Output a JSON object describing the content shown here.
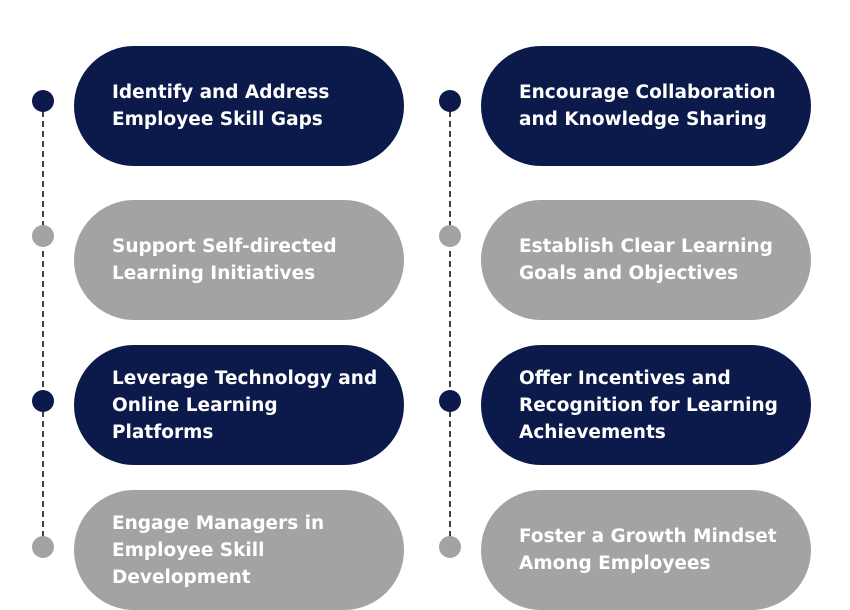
{
  "colors": {
    "primary": "#0b1a4a",
    "secondary": "#a3a3a3",
    "connector": "#3f3f4a"
  },
  "left_column": [
    {
      "label": "Identify and Address Employee Skill Gaps",
      "style": "primary"
    },
    {
      "label": "Support Self-directed Learning Initiatives",
      "style": "secondary"
    },
    {
      "label": "Leverage Technology and Online Learning Platforms",
      "style": "primary"
    },
    {
      "label": "Engage Managers in Employee Skill Development",
      "style": "secondary"
    }
  ],
  "right_column": [
    {
      "label": "Encourage Collaboration and Knowledge Sharing",
      "style": "primary"
    },
    {
      "label": "Establish Clear Learning Goals and Objectives",
      "style": "secondary"
    },
    {
      "label": "Offer Incentives and Recognition for Learning Achievements",
      "style": "primary"
    },
    {
      "label": "Foster a Growth Mindset Among Employees",
      "style": "secondary"
    }
  ]
}
